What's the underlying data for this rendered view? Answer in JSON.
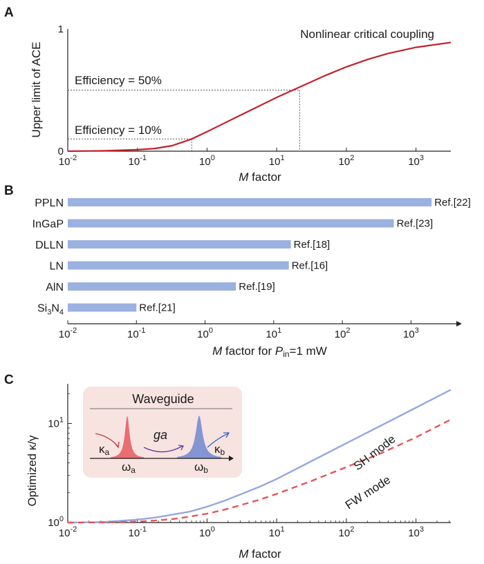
{
  "chart_data": [
    {
      "panel": "A",
      "type": "line",
      "xscale": "log",
      "xlim_exp": [
        -2,
        3.5
      ],
      "ylim": [
        0,
        1
      ],
      "xlabel_italic": "M",
      "xlabel_rest": " factor",
      "ylabel": "Upper limit of ACE",
      "xticks_exp": [
        "-2",
        "-1",
        "0",
        "1",
        "2",
        "3"
      ],
      "yticks": [
        "0",
        "1"
      ],
      "curve_color": "#c41f2c",
      "series": [
        {
          "name": "ACE upper limit",
          "x_exp": [
            -2,
            -1.5,
            -1,
            -0.75,
            -0.5,
            -0.22,
            0,
            0.25,
            0.5,
            0.75,
            1,
            1.35,
            1.7,
            2,
            2.3,
            2.6,
            3,
            3.5
          ],
          "y": [
            0.0,
            0.003,
            0.012,
            0.022,
            0.045,
            0.1,
            0.16,
            0.23,
            0.3,
            0.37,
            0.44,
            0.53,
            0.62,
            0.69,
            0.75,
            0.8,
            0.85,
            0.89
          ]
        }
      ],
      "annotations": [
        {
          "text": "Nonlinear critical coupling"
        },
        {
          "text": "Efficiency = 50%",
          "y": 0.5,
          "x_exp": 1.33
        },
        {
          "text": "Efficiency = 10%",
          "y": 0.1,
          "x_exp": -0.22
        }
      ]
    },
    {
      "panel": "B",
      "type": "bar",
      "orientation": "horizontal",
      "xscale": "log",
      "xlim_exp": [
        -2,
        3.6
      ],
      "xlabel_italic": "M",
      "xlabel_mid": " factor for ",
      "xlabel_p": "P",
      "xlabel_sub": "in",
      "xlabel_end": "=1 mW",
      "xticks_exp": [
        "-2",
        "-1",
        "0",
        "1",
        "2",
        "3"
      ],
      "bar_color": "#9bb1e0",
      "categories": [
        {
          "name": "PPLN",
          "sub": "",
          "tail": "",
          "value_exp": 3.3,
          "ref": "Ref.[22]"
        },
        {
          "name": "InGaP",
          "sub": "",
          "tail": "",
          "value_exp": 2.75,
          "ref": "Ref.[23]"
        },
        {
          "name": "DLLN",
          "sub": "",
          "tail": "",
          "value_exp": 1.25,
          "ref": "Ref.[18]"
        },
        {
          "name": "LN",
          "sub": "",
          "tail": "",
          "value_exp": 1.22,
          "ref": "Ref.[16]"
        },
        {
          "name": "AlN",
          "sub": "",
          "tail": "",
          "value_exp": 0.45,
          "ref": "Ref.[19]"
        },
        {
          "name": "Si",
          "sub": "3",
          "tail": "N",
          "tail_sub": "4",
          "value_exp": -1.0,
          "ref": "Ref.[21]"
        }
      ]
    },
    {
      "panel": "C",
      "type": "line",
      "xscale": "log",
      "yscale": "log",
      "xlim_exp": [
        -2,
        3.5
      ],
      "ylim_exp": [
        0,
        1.4
      ],
      "xlabel_italic": "M",
      "xlabel_rest": " factor",
      "ylabel": "Optimized κ/γ",
      "xticks_exp": [
        "-2",
        "-1",
        "0",
        "1",
        "2",
        "3"
      ],
      "yticks_exp": [
        "0",
        "1"
      ],
      "series": [
        {
          "name": "SH mode",
          "color": "#93a8dd",
          "style": "solid",
          "x_exp": [
            -2,
            -1.5,
            -1,
            -0.75,
            -0.5,
            -0.25,
            0,
            0.25,
            0.5,
            0.75,
            1,
            1.5,
            2,
            2.5,
            3,
            3.5
          ],
          "y_exp": [
            0.0,
            0.005,
            0.03,
            0.05,
            0.08,
            0.11,
            0.16,
            0.22,
            0.29,
            0.36,
            0.44,
            0.62,
            0.8,
            0.98,
            1.16,
            1.34
          ]
        },
        {
          "name": "FW mode",
          "color": "#e4545a",
          "style": "dashed",
          "x_exp": [
            -2,
            -1.5,
            -1,
            -0.75,
            -0.5,
            -0.25,
            0,
            0.25,
            0.5,
            0.75,
            1,
            1.5,
            2,
            2.5,
            3,
            3.5
          ],
          "y_exp": [
            0.0,
            0.002,
            0.01,
            0.02,
            0.035,
            0.06,
            0.09,
            0.13,
            0.18,
            0.23,
            0.29,
            0.42,
            0.56,
            0.7,
            0.86,
            1.04
          ]
        }
      ],
      "labels": {
        "sh": "SH mode",
        "fw": "FW mode"
      },
      "inset": {
        "title": "Waveguide",
        "coupling": "ga",
        "kappa_a": "κ",
        "kappa_a_sub": "a",
        "kappa_b": "κ",
        "kappa_b_sub": "b",
        "omega_a": "ω",
        "omega_a_sub": "a",
        "omega_b": "ω",
        "omega_b_sub": "b",
        "bg_color": "#f7e3e0",
        "peak_a_color": "#e8585d",
        "peak_b_color": "#6f87cf"
      }
    }
  ],
  "panel_letters": {
    "a": "A",
    "b": "B",
    "c": "C"
  }
}
